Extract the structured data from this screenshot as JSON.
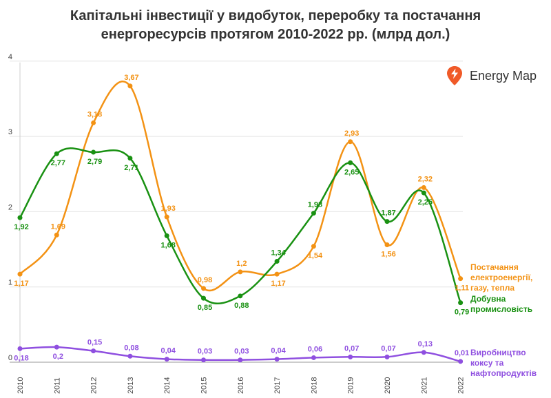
{
  "chart_data": {
    "type": "line",
    "title_line1": "Капітальні інвестиції у видобуток, переробку та постачання",
    "title_line2": "енергоресурсів протягом 2010-2022 рр. (млрд дол.)",
    "categories": [
      "2010",
      "2011",
      "2012",
      "2013",
      "2014",
      "2015",
      "2016",
      "2017",
      "2018",
      "2019",
      "2020",
      "2021",
      "2022"
    ],
    "yticks": [
      "0",
      "1",
      "2",
      "3",
      "4"
    ],
    "ylim": [
      0,
      4
    ],
    "series": [
      {
        "name": "supply",
        "legend": [
          "Постачання",
          "електроенергії,",
          "газу, тепла"
        ],
        "color": "#f39214",
        "values": [
          1.17,
          1.69,
          3.18,
          3.67,
          1.93,
          0.98,
          1.2,
          1.17,
          1.54,
          2.93,
          1.56,
          2.32,
          1.11
        ],
        "labels": [
          "1,17",
          "1,69",
          "3,18",
          "3,67",
          "1,93",
          "0,98",
          "1,2",
          "1,17",
          "1,54",
          "2,93",
          "1,56",
          "2,32",
          "1,11"
        ]
      },
      {
        "name": "mining",
        "legend": [
          "Добувна",
          "промисловість"
        ],
        "color": "#199112",
        "values": [
          1.92,
          2.77,
          2.79,
          2.71,
          1.68,
          0.85,
          0.88,
          1.34,
          1.98,
          2.65,
          1.87,
          2.25,
          0.79
        ],
        "labels": [
          "1,92",
          "2,77",
          "2,79",
          "2,71",
          "1,68",
          "0,85",
          "0,88",
          "1,34",
          "1,98",
          "2,65",
          "1,87",
          "2,25",
          "0,79"
        ]
      },
      {
        "name": "coke",
        "legend": [
          "Виробництво",
          "коксу та",
          "нафтопродуктів"
        ],
        "color": "#8f4fe0",
        "values": [
          0.18,
          0.2,
          0.15,
          0.08,
          0.04,
          0.03,
          0.03,
          0.04,
          0.06,
          0.07,
          0.07,
          0.13,
          0.01
        ],
        "labels": [
          "0,18",
          "0,2",
          "0,15",
          "0,08",
          "0,04",
          "0,03",
          "0,03",
          "0,04",
          "0,06",
          "0,07",
          "0,07",
          "0,13",
          "0,01"
        ]
      }
    ]
  },
  "logo": {
    "text": "Energy Map",
    "icon": "map-pin-bolt-icon",
    "color": "#f05a28"
  }
}
